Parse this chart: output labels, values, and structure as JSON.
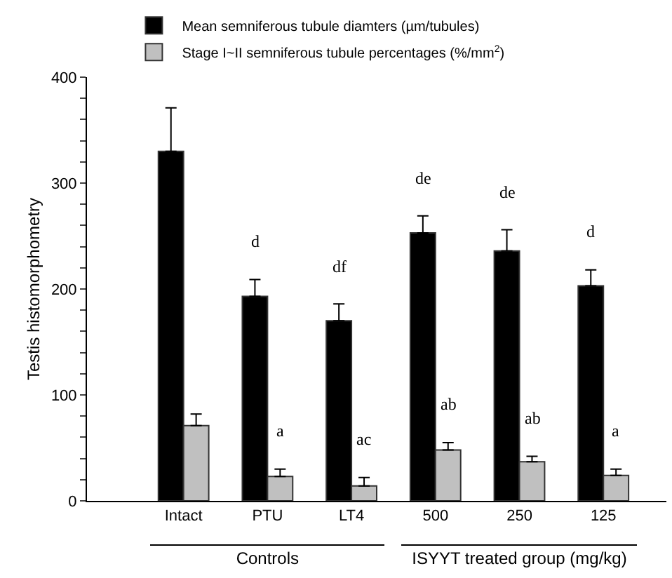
{
  "chart_data": {
    "type": "bar",
    "ylabel": "Testis histomorphometry",
    "categories": [
      "Intact",
      "PTU",
      "LT4",
      "500",
      "250",
      "125"
    ],
    "series": [
      {
        "name": "Mean semniferous tubule diamters (µm/tubules)",
        "color": "#000000",
        "values": [
          330,
          193,
          170,
          253,
          236,
          203
        ],
        "errors": [
          [
            330,
            371
          ],
          [
            193,
            209
          ],
          [
            170,
            186
          ],
          [
            253,
            269
          ],
          [
            236,
            256
          ],
          [
            203,
            218
          ]
        ]
      },
      {
        "name": "Stage I~II semniferous tubule percentages (%/mm$^{2}$)",
        "color": "#c0c0c0",
        "values": [
          71,
          23,
          14,
          48,
          37,
          24
        ],
        "errors": [
          [
            71,
            82
          ],
          [
            23,
            30
          ],
          [
            14,
            22
          ],
          [
            48,
            55
          ],
          [
            37,
            42
          ],
          [
            24,
            30
          ]
        ]
      }
    ],
    "ylim": [
      0,
      400
    ],
    "yticks": [
      0,
      {
        "value": 20,
        "label": null
      },
      {
        "value": 40,
        "label": null
      },
      {
        "value": 60,
        "label": null
      },
      {
        "value": 80,
        "label": null
      },
      100,
      {
        "value": 120,
        "label": null
      },
      {
        "value": 140,
        "label": null
      },
      {
        "value": 160,
        "label": null
      },
      {
        "value": 180,
        "label": null
      },
      200,
      {
        "value": 220,
        "label": null
      },
      {
        "value": 240,
        "label": null
      },
      {
        "value": 260,
        "label": null
      },
      {
        "value": 280,
        "label": null
      },
      300,
      {
        "value": 320,
        "label": null
      },
      {
        "value": 340,
        "label": null
      },
      {
        "value": 360,
        "label": null
      },
      {
        "value": 380,
        "label": null
      },
      400
    ],
    "grid": false,
    "legend": "top",
    "annotations": [
      {
        "text": "d",
        "x": "PTU",
        "y": 193
      },
      {
        "text": "df",
        "x": "LT4",
        "y": 170
      },
      {
        "text": "de",
        "x": "500",
        "y": 253
      },
      {
        "text": "de",
        "x": "250",
        "y": 236
      },
      {
        "text": "d",
        "x": "125",
        "y": 203
      },
      {
        "text": "a",
        "x": "PTU",
        "y": 23
      },
      {
        "text": "ac",
        "x": "LT4",
        "y": 14
      },
      {
        "text": "ab",
        "x": "500",
        "y": 48
      },
      {
        "text": "ab",
        "x": "250",
        "y": 37
      },
      {
        "text": "a",
        "x": "125",
        "y": 24
      },
      "Controls",
      "ISYYT treated group (mg/kg)"
    ]
  }
}
